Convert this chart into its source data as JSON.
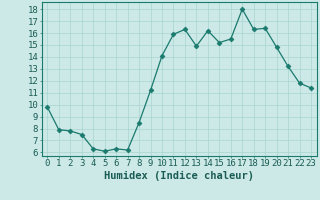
{
  "x": [
    0,
    1,
    2,
    3,
    4,
    5,
    6,
    7,
    8,
    9,
    10,
    11,
    12,
    13,
    14,
    15,
    16,
    17,
    18,
    19,
    20,
    21,
    22,
    23
  ],
  "y": [
    9.8,
    7.9,
    7.8,
    7.5,
    6.3,
    6.1,
    6.3,
    6.2,
    8.5,
    11.2,
    14.1,
    15.9,
    16.3,
    14.9,
    16.2,
    15.2,
    15.5,
    18.0,
    16.3,
    16.4,
    14.8,
    13.2,
    11.8,
    11.4
  ],
  "line_color": "#1a7a6e",
  "marker": "D",
  "marker_size": 2.5,
  "bg_color": "#cce9e7",
  "grid_color": "#a8d5d2",
  "xlabel": "Humidex (Indice chaleur)",
  "ylabel_ticks": [
    6,
    7,
    8,
    9,
    10,
    11,
    12,
    13,
    14,
    15,
    16,
    17,
    18
  ],
  "ylim": [
    5.7,
    18.6
  ],
  "xlim": [
    -0.5,
    23.5
  ],
  "xlabel_fontsize": 7.5,
  "tick_fontsize": 6.5
}
